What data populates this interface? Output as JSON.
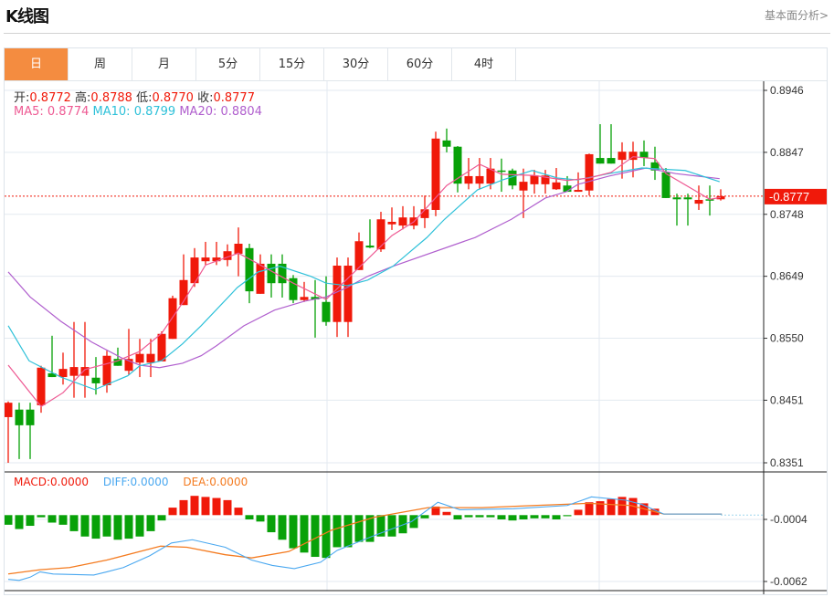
{
  "header": {
    "title": "K线图",
    "link": "基本面分析>"
  },
  "tabs": [
    {
      "label": "日",
      "active": true
    },
    {
      "label": "周"
    },
    {
      "label": "月"
    },
    {
      "label": "5分"
    },
    {
      "label": "15分"
    },
    {
      "label": "30分"
    },
    {
      "label": "60分"
    },
    {
      "label": "4时"
    }
  ],
  "legend": {
    "open_label": "开:",
    "open": "0.8772",
    "high_label": "高:",
    "high": "0.8788",
    "low_label": "低:",
    "low": "0.8770",
    "close_label": "收:",
    "close": "0.8777",
    "ma5": "MA5: 0.8774",
    "ma10": "MA10: 0.8799",
    "ma20": "MA20: 0.8804"
  },
  "macd_legend": {
    "macd": "MACD:0.0000",
    "diff": "DIFF:0.0000",
    "dea": "DEA:0.0000"
  },
  "colors": {
    "up": "#f0190a",
    "down": "#08a108",
    "ma5": "#ee5a93",
    "ma10": "#2fc1d9",
    "ma20": "#b05fce",
    "diff": "#4aa8f0",
    "dea": "#f47b20",
    "active_tab": "#f48c40"
  },
  "chart_data": [
    {
      "type": "candlestick",
      "title": "K线图",
      "ylim": [
        0.8351,
        0.8946
      ],
      "yticks": [
        "0.8946",
        "0.8847",
        "0.8748",
        "0.8649",
        "0.8550",
        "0.8451",
        "0.8351"
      ],
      "last_price": "0.8777",
      "ohlc": [
        [
          0.8424,
          0.8449,
          0.8351,
          0.8447
        ],
        [
          0.8436,
          0.8447,
          0.8357,
          0.8411
        ],
        [
          0.8436,
          0.8447,
          0.8357,
          0.8411
        ],
        [
          0.8443,
          0.8506,
          0.8431,
          0.8503
        ],
        [
          0.8494,
          0.8554,
          0.8488,
          0.8488
        ],
        [
          0.8488,
          0.8527,
          0.8476,
          0.8501
        ],
        [
          0.849,
          0.8576,
          0.8455,
          0.8504
        ],
        [
          0.849,
          0.8576,
          0.8455,
          0.8504
        ],
        [
          0.8487,
          0.852,
          0.846,
          0.8478
        ],
        [
          0.8475,
          0.853,
          0.8463,
          0.8522
        ],
        [
          0.8517,
          0.8535,
          0.8506,
          0.8506
        ],
        [
          0.8498,
          0.8565,
          0.8491,
          0.8517
        ],
        [
          0.8511,
          0.8549,
          0.8488,
          0.8525
        ],
        [
          0.8511,
          0.8549,
          0.8488,
          0.8525
        ],
        [
          0.8513,
          0.8561,
          0.8513,
          0.8557
        ],
        [
          0.8549,
          0.8618,
          0.8549,
          0.8614
        ],
        [
          0.8603,
          0.8684,
          0.8603,
          0.8643
        ],
        [
          0.8638,
          0.8694,
          0.8632,
          0.8679
        ],
        [
          0.8673,
          0.8704,
          0.8667,
          0.8679
        ],
        [
          0.8673,
          0.8704,
          0.8667,
          0.8679
        ],
        [
          0.8675,
          0.87,
          0.8665,
          0.8689
        ],
        [
          0.8685,
          0.8727,
          0.8649,
          0.8701
        ],
        [
          0.8694,
          0.8701,
          0.8606,
          0.8625
        ],
        [
          0.8621,
          0.8684,
          0.8621,
          0.8669
        ],
        [
          0.8669,
          0.8684,
          0.8615,
          0.8638
        ],
        [
          0.8669,
          0.8684,
          0.8615,
          0.8638
        ],
        [
          0.8646,
          0.8651,
          0.8606,
          0.8611
        ],
        [
          0.8611,
          0.864,
          0.8608,
          0.8616
        ],
        [
          0.8616,
          0.8643,
          0.8551,
          0.8612
        ],
        [
          0.8608,
          0.8649,
          0.857,
          0.8576
        ],
        [
          0.8576,
          0.8679,
          0.8552,
          0.8666
        ],
        [
          0.8576,
          0.8679,
          0.8552,
          0.8666
        ],
        [
          0.8659,
          0.8719,
          0.8659,
          0.8705
        ],
        [
          0.8698,
          0.874,
          0.8694,
          0.8695
        ],
        [
          0.8692,
          0.8752,
          0.8688,
          0.874
        ],
        [
          0.8732,
          0.8759,
          0.8723,
          0.8736
        ],
        [
          0.873,
          0.8761,
          0.8724,
          0.8743
        ],
        [
          0.873,
          0.8761,
          0.8724,
          0.8743
        ],
        [
          0.8742,
          0.8778,
          0.8726,
          0.8756
        ],
        [
          0.8755,
          0.888,
          0.8745,
          0.8869
        ],
        [
          0.8866,
          0.8885,
          0.8847,
          0.8856
        ],
        [
          0.8856,
          0.8857,
          0.8783,
          0.8797
        ],
        [
          0.8797,
          0.8838,
          0.8788,
          0.8809
        ],
        [
          0.8797,
          0.8838,
          0.8788,
          0.8809
        ],
        [
          0.8797,
          0.8838,
          0.8788,
          0.8821
        ],
        [
          0.8818,
          0.8837,
          0.8784,
          0.8816
        ],
        [
          0.8818,
          0.8821,
          0.8788,
          0.8794
        ],
        [
          0.8786,
          0.8821,
          0.8742,
          0.88
        ],
        [
          0.8796,
          0.8819,
          0.8781,
          0.881
        ],
        [
          0.8796,
          0.8819,
          0.8781,
          0.881
        ],
        [
          0.8788,
          0.8822,
          0.8787,
          0.8799
        ],
        [
          0.8794,
          0.8809,
          0.8784,
          0.8784
        ],
        [
          0.8784,
          0.8815,
          0.8784,
          0.8787
        ],
        [
          0.8786,
          0.8845,
          0.8778,
          0.8844
        ],
        [
          0.8838,
          0.8892,
          0.8829,
          0.8829
        ],
        [
          0.8838,
          0.8892,
          0.8829,
          0.8829
        ],
        [
          0.8835,
          0.8863,
          0.8805,
          0.8848
        ],
        [
          0.8835,
          0.8864,
          0.8807,
          0.8848
        ],
        [
          0.8848,
          0.8866,
          0.8825,
          0.8838
        ],
        [
          0.8831,
          0.8856,
          0.8803,
          0.8818
        ],
        [
          0.8815,
          0.8822,
          0.8774,
          0.8774
        ],
        [
          0.8775,
          0.8781,
          0.873,
          0.8772
        ],
        [
          0.8775,
          0.8781,
          0.873,
          0.8772
        ],
        [
          0.8765,
          0.8794,
          0.8755,
          0.8771
        ],
        [
          0.8772,
          0.8794,
          0.8746,
          0.8771
        ],
        [
          0.8772,
          0.8788,
          0.877,
          0.8777
        ]
      ],
      "ma5": [
        [
          0,
          0.8507
        ],
        [
          3,
          0.8441
        ],
        [
          5,
          0.8463
        ],
        [
          7,
          0.85
        ],
        [
          10,
          0.8514
        ],
        [
          12,
          0.8529
        ],
        [
          14,
          0.8558
        ],
        [
          16,
          0.8609
        ],
        [
          18,
          0.8667
        ],
        [
          21,
          0.8686
        ],
        [
          23,
          0.8667
        ],
        [
          26,
          0.8638
        ],
        [
          29,
          0.8612
        ],
        [
          32,
          0.8663
        ],
        [
          35,
          0.8714
        ],
        [
          37,
          0.8736
        ],
        [
          40,
          0.8794
        ],
        [
          43,
          0.8828
        ],
        [
          45,
          0.8812
        ],
        [
          48,
          0.881
        ],
        [
          51,
          0.8802
        ],
        [
          53,
          0.8806
        ],
        [
          55,
          0.8815
        ],
        [
          57,
          0.884
        ],
        [
          59,
          0.8837
        ],
        [
          60,
          0.8813
        ],
        [
          64,
          0.8772
        ],
        [
          65,
          0.8775
        ]
      ],
      "ma10": [
        [
          0,
          0.857
        ],
        [
          1.9,
          0.8514
        ],
        [
          4.8,
          0.8488
        ],
        [
          7.9,
          0.8468
        ],
        [
          10.9,
          0.849
        ],
        [
          12,
          0.8506
        ],
        [
          14,
          0.8514
        ],
        [
          15.9,
          0.8541
        ],
        [
          17.6,
          0.857
        ],
        [
          20.9,
          0.8631
        ],
        [
          22.8,
          0.8656
        ],
        [
          24.8,
          0.8665
        ],
        [
          27.6,
          0.8649
        ],
        [
          29,
          0.8638
        ],
        [
          30.9,
          0.8634
        ],
        [
          32.8,
          0.8643
        ],
        [
          35.1,
          0.8665
        ],
        [
          38.2,
          0.8711
        ],
        [
          39.8,
          0.874
        ],
        [
          42.8,
          0.8787
        ],
        [
          45.1,
          0.8803
        ],
        [
          47.8,
          0.8818
        ],
        [
          50.1,
          0.8806
        ],
        [
          51.9,
          0.8803
        ],
        [
          54.8,
          0.8813
        ],
        [
          57.8,
          0.8822
        ],
        [
          61.75,
          0.8818
        ],
        [
          64.9,
          0.88
        ]
      ],
      "ma20": [
        [
          0,
          0.8656
        ],
        [
          2,
          0.8616
        ],
        [
          4.8,
          0.8577
        ],
        [
          7.6,
          0.8544
        ],
        [
          10.3,
          0.8519
        ],
        [
          12,
          0.8507
        ],
        [
          13.8,
          0.8503
        ],
        [
          15.9,
          0.851
        ],
        [
          17.6,
          0.8522
        ],
        [
          19,
          0.8538
        ],
        [
          21.5,
          0.857
        ],
        [
          24.3,
          0.8595
        ],
        [
          27,
          0.8609
        ],
        [
          29,
          0.8616
        ],
        [
          30.9,
          0.8631
        ],
        [
          32.8,
          0.8649
        ],
        [
          35.1,
          0.8665
        ],
        [
          42.6,
          0.8711
        ],
        [
          45.9,
          0.874
        ],
        [
          49,
          0.8774
        ],
        [
          50.9,
          0.8784
        ],
        [
          52,
          0.8796
        ],
        [
          54.8,
          0.8809
        ],
        [
          58.2,
          0.8822
        ],
        [
          60.9,
          0.8813
        ],
        [
          64.9,
          0.8805
        ]
      ]
    },
    {
      "type": "bar",
      "title": "MACD",
      "ylim": [
        -0.0068,
        0.0039
      ],
      "yticks": [
        "-0.0004",
        "-0.0062"
      ],
      "macd": [
        -0.0009,
        -0.0013,
        -0.001,
        -0.0002,
        -0.0007,
        -0.0009,
        -0.0015,
        -0.002,
        -0.0022,
        -0.002,
        -0.0023,
        -0.0022,
        -0.002,
        -0.0015,
        -0.0005,
        0.0007,
        0.0014,
        0.0018,
        0.0017,
        0.0016,
        0.0014,
        0.0007,
        -0.0004,
        -0.0006,
        -0.0016,
        -0.0023,
        -0.0031,
        -0.0035,
        -0.0039,
        -0.004,
        -0.003,
        -0.003,
        -0.0025,
        -0.0025,
        -0.002,
        -0.002,
        -0.0017,
        -0.0012,
        -0.0003,
        0.0008,
        0.0003,
        -0.0004,
        -0.0002,
        -0.0002,
        -0.0002,
        -0.0004,
        -0.0005,
        -0.0004,
        -0.0003,
        -0.0003,
        -0.0004,
        -0.0001,
        0.0005,
        0.0012,
        0.0013,
        0.0015,
        0.0017,
        0.0016,
        0.0011,
        0.0006,
        0.0,
        0.0,
        0.0,
        0.0,
        0.0,
        0.0
      ],
      "diff": [
        [
          0,
          -0.006
        ],
        [
          1,
          -0.0061
        ],
        [
          2,
          -0.0058
        ],
        [
          2.9,
          -0.0053
        ],
        [
          4.1,
          -0.0055
        ],
        [
          7.8,
          -0.0056
        ],
        [
          9,
          -0.0053
        ],
        [
          10.5,
          -0.0049
        ],
        [
          12.9,
          -0.0038
        ],
        [
          14.9,
          -0.0026
        ],
        [
          16.8,
          -0.0023
        ],
        [
          19.8,
          -0.003
        ],
        [
          22.2,
          -0.0042
        ],
        [
          24.1,
          -0.0047
        ],
        [
          26.1,
          -0.005
        ],
        [
          28.5,
          -0.0044
        ],
        [
          30,
          -0.0033
        ],
        [
          33.4,
          -0.0019
        ],
        [
          36.8,
          -0.0006
        ],
        [
          39.2,
          0.0012
        ],
        [
          41.2,
          0.0005
        ],
        [
          46.1,
          0.0006
        ],
        [
          51,
          0.0009
        ],
        [
          53.2,
          0.0017
        ],
        [
          56.3,
          0.0014
        ],
        [
          57.8,
          0.001
        ],
        [
          59.8,
          0.0001
        ],
        [
          65.1,
          0.0001
        ]
      ],
      "dea": [
        [
          0,
          -0.0055
        ],
        [
          2.9,
          -0.0051
        ],
        [
          5.6,
          -0.0049
        ],
        [
          9,
          -0.0042
        ],
        [
          13.9,
          -0.0029
        ],
        [
          16.3,
          -0.003
        ],
        [
          19.8,
          -0.0037
        ],
        [
          22.2,
          -0.004
        ],
        [
          25.6,
          -0.0034
        ],
        [
          29.5,
          -0.0014
        ],
        [
          33.4,
          -0.0002
        ],
        [
          38.3,
          0.0007
        ],
        [
          43.2,
          0.0007
        ],
        [
          48,
          0.0009
        ],
        [
          52.9,
          0.0011
        ],
        [
          56.8,
          0.0009
        ],
        [
          59.8,
          0.0001
        ],
        [
          65.1,
          0.0001
        ]
      ]
    }
  ]
}
